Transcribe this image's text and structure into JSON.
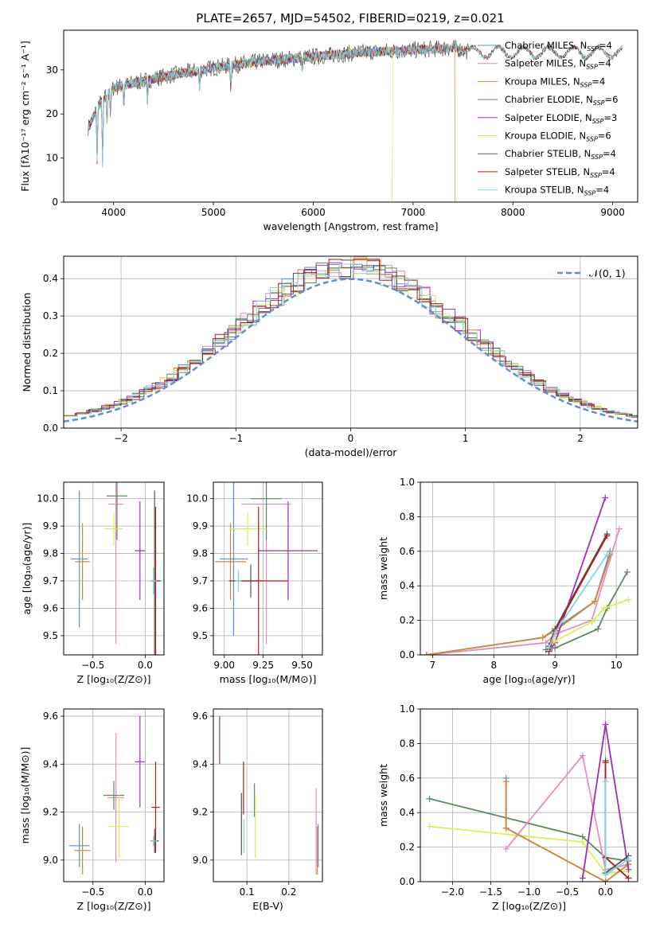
{
  "title": "PLATE=2657, MJD=54502, FIBERID=0219, z=0.021",
  "colors": {
    "Chabrier MILES": "#5b8fd6",
    "Salpeter MILES": "#e58ac2",
    "Kroupa MILES": "#d8862e",
    "Chabrier ELODIE": "#5b8a5e",
    "Salpeter ELODIE": "#9e2fb5",
    "Kroupa ELODIE": "#d8ef50",
    "Chabrier STELIB": "#555555",
    "Salpeter STELIB": "#b01b1b",
    "Kroupa STELIB": "#7ed6db"
  },
  "legend_spectrum": [
    {
      "label": "Chabrier MILES, N",
      "sub": "SSP",
      "tail": "=4",
      "key": "Chabrier MILES"
    },
    {
      "label": "Salpeter MILES, N",
      "sub": "SSP",
      "tail": "=4",
      "key": "Salpeter MILES"
    },
    {
      "label": "Kroupa MILES, N",
      "sub": "SSP",
      "tail": "=4",
      "key": "Kroupa MILES"
    },
    {
      "label": "Chabrier ELODIE, N",
      "sub": "SSP",
      "tail": "=6",
      "key": "Chabrier ELODIE"
    },
    {
      "label": "Salpeter ELODIE, N",
      "sub": "SSP",
      "tail": "=3",
      "key": "Salpeter ELODIE"
    },
    {
      "label": "Kroupa ELODIE, N",
      "sub": "SSP",
      "tail": "=6",
      "key": "Kroupa ELODIE"
    },
    {
      "label": "Chabrier STELIB, N",
      "sub": "SSP",
      "tail": "=4",
      "key": "Chabrier STELIB"
    },
    {
      "label": "Salpeter STELIB, N",
      "sub": "SSP",
      "tail": "=4",
      "key": "Salpeter STELIB"
    },
    {
      "label": "Kroupa STELIB, N",
      "sub": "SSP",
      "tail": "=4",
      "key": "Kroupa STELIB"
    }
  ],
  "chart_data": [
    {
      "type": "line",
      "name": "spectrum",
      "xlabel": "wavelength [Angstrom, rest frame]",
      "ylabel": "Flux [fλ10⁻¹⁷ erg cm⁻² s⁻¹ A⁻¹]",
      "xlim": [
        3500,
        9250
      ],
      "ylim": [
        0,
        39
      ],
      "xticks": [
        "4000",
        "5000",
        "6000",
        "7000",
        "8000",
        "9000"
      ],
      "yticks": [
        "0",
        "10",
        "20",
        "30"
      ],
      "continuum": {
        "x": [
          3750,
          3850,
          4000,
          4200,
          4500,
          5000,
          5500,
          6000,
          6500,
          7000,
          7400,
          7600,
          8000,
          8500,
          9100
        ],
        "y": [
          17,
          22,
          26,
          27,
          28.5,
          30.5,
          32,
          33,
          34,
          34.5,
          35,
          34,
          34,
          34,
          34
        ]
      }
    },
    {
      "type": "bar",
      "name": "residual histogram",
      "xlabel": "(data-model)/error",
      "ylabel": "Normed distribution",
      "xlim": [
        -2.5,
        2.5
      ],
      "ylim": [
        0,
        0.46
      ],
      "xticks": [
        "−2",
        "−1",
        "0",
        "1",
        "2"
      ],
      "yticks": [
        "0.0",
        "0.1",
        "0.2",
        "0.3",
        "0.4"
      ],
      "legend": "𝒩(0, 1)",
      "reference": "normal pdf, mean 0, sigma 1"
    },
    {
      "type": "scatter",
      "name": "age vs Z",
      "xlabel": "Z [log₁₀(Z/Z⊙)]",
      "ylabel": "age  [log₁₀(age/yr)]",
      "xlim": [
        -0.78,
        0.18
      ],
      "ylim": [
        9.43,
        10.06
      ],
      "xticks": [
        "−0.5",
        "0.0"
      ],
      "yticks": [
        "9.5",
        "9.6",
        "9.7",
        "9.8",
        "9.9",
        "10.0"
      ],
      "points": [
        {
          "series": "Chabrier MILES",
          "x": -0.63,
          "y": 9.78,
          "xerr": 0.08,
          "yerr": 0.25
        },
        {
          "series": "Kroupa MILES",
          "x": -0.6,
          "y": 9.77,
          "xerr": 0.07,
          "yerr": 0.14
        },
        {
          "series": "Salpeter MILES",
          "x": -0.28,
          "y": 9.98,
          "xerr": 0.07,
          "yerr": 0.51
        },
        {
          "series": "Chabrier ELODIE",
          "x": -0.27,
          "y": 10.01,
          "xerr": 0.1,
          "yerr": 0.16
        },
        {
          "series": "Kroupa ELODIE",
          "x": -0.3,
          "y": 9.89,
          "xerr": 0.09,
          "yerr": 0.06
        },
        {
          "series": "Salpeter ELODIE",
          "x": -0.05,
          "y": 9.81,
          "xerr": 0.05,
          "yerr": 0.18
        },
        {
          "series": "Chabrier STELIB",
          "x": 0.09,
          "y": 9.7,
          "xerr": 0.04,
          "yerr": 0.33
        },
        {
          "series": "Salpeter STELIB",
          "x": 0.1,
          "y": 9.7,
          "xerr": 0.05,
          "yerr": 0.27
        },
        {
          "series": "Kroupa STELIB",
          "x": 0.08,
          "y": 9.7,
          "xerr": 0.03,
          "yerr": 0.05
        }
      ]
    },
    {
      "type": "scatter",
      "name": "age vs mass",
      "xlabel": "mass [log₁₀(M/M⊙)]",
      "ylabel": "",
      "xlim": [
        8.93,
        9.63
      ],
      "ylim": [
        9.43,
        10.06
      ],
      "xticks": [
        "9.00",
        "9.25",
        "9.50"
      ],
      "yticks": [
        "9.5",
        "9.6",
        "9.7",
        "9.8",
        "9.9",
        "10.0"
      ],
      "points": [
        {
          "series": "Chabrier MILES",
          "x": 9.06,
          "y": 9.78,
          "xerr": 0.09,
          "yerr": 0.28
        },
        {
          "series": "Kroupa MILES",
          "x": 9.04,
          "y": 9.77,
          "xerr": 0.1,
          "yerr": 0.14
        },
        {
          "series": "Salpeter MILES",
          "x": 9.27,
          "y": 9.98,
          "xerr": 0.16,
          "yerr": 0.51
        },
        {
          "series": "Chabrier ELODIE",
          "x": 9.27,
          "y": 10.0,
          "xerr": 0.1,
          "yerr": 0.15
        },
        {
          "series": "Kroupa ELODIE",
          "x": 9.15,
          "y": 9.89,
          "xerr": 0.12,
          "yerr": 0.06
        },
        {
          "series": "Salpeter ELODIE",
          "x": 9.41,
          "y": 9.81,
          "xerr": 0.19,
          "yerr": 0.18
        },
        {
          "series": "Chabrier STELIB",
          "x": 9.17,
          "y": 9.7,
          "xerr": 0.08,
          "yerr": 0.06
        },
        {
          "series": "Salpeter STELIB",
          "x": 9.22,
          "y": 9.7,
          "xerr": 0.19,
          "yerr": 0.27
        },
        {
          "series": "Kroupa STELIB",
          "x": 9.09,
          "y": 9.7,
          "xerr": 0.02,
          "yerr": 0.04
        }
      ]
    },
    {
      "type": "line",
      "name": "mass weight vs age",
      "xlabel": "age  [log₁₀(age/yr)]",
      "ylabel": "mass weight",
      "xlim": [
        6.8,
        10.35
      ],
      "ylim": [
        0,
        1.0
      ],
      "xticks": [
        "7",
        "8",
        "9",
        "10"
      ],
      "yticks": [
        "0.0",
        "0.2",
        "0.4",
        "0.6",
        "0.8",
        "1.0"
      ],
      "series": [
        {
          "key": "Chabrier MILES",
          "x": [
            6.9,
            8.8,
            9.0,
            9.65,
            9.9
          ],
          "y": [
            0.0,
            0.1,
            0.15,
            0.31,
            0.6
          ]
        },
        {
          "key": "Salpeter MILES",
          "x": [
            6.9,
            8.85,
            9.0,
            9.6,
            10.05
          ],
          "y": [
            0.0,
            0.07,
            0.12,
            0.2,
            0.73
          ]
        },
        {
          "key": "Kroupa MILES",
          "x": [
            6.9,
            8.8,
            9.0,
            9.65,
            9.9
          ],
          "y": [
            0.0,
            0.1,
            0.14,
            0.31,
            0.58
          ]
        },
        {
          "key": "Chabrier ELODIE",
          "x": [
            8.85,
            8.95,
            9.0,
            9.7,
            9.85,
            10.18
          ],
          "y": [
            0.03,
            0.04,
            0.04,
            0.15,
            0.27,
            0.48
          ]
        },
        {
          "key": "Salpeter ELODIE",
          "x": [
            8.9,
            9.0,
            9.82
          ],
          "y": [
            0.02,
            0.07,
            0.91
          ]
        },
        {
          "key": "Kroupa ELODIE",
          "x": [
            8.9,
            9.0,
            9.6,
            9.8,
            10.2
          ],
          "y": [
            0.05,
            0.08,
            0.19,
            0.27,
            0.32
          ]
        },
        {
          "key": "Chabrier STELIB",
          "x": [
            8.9,
            9.0,
            9.85
          ],
          "y": [
            0.05,
            0.15,
            0.7
          ]
        },
        {
          "key": "Salpeter STELIB",
          "x": [
            8.9,
            9.0,
            9.85
          ],
          "y": [
            0.02,
            0.14,
            0.69
          ]
        },
        {
          "key": "Kroupa STELIB",
          "x": [
            8.9,
            9.0,
            9.85
          ],
          "y": [
            0.04,
            0.13,
            0.58
          ]
        }
      ]
    },
    {
      "type": "scatter",
      "name": "mass vs Z",
      "xlabel": "Z [log₁₀(Z/Z⊙)]",
      "ylabel": "mass [log₁₀(M/M⊙)]",
      "xlim": [
        -0.78,
        0.18
      ],
      "ylim": [
        8.91,
        9.63
      ],
      "xticks": [
        "−0.5",
        "0.0"
      ],
      "yticks": [
        "9.0",
        "9.2",
        "9.4",
        "9.6"
      ],
      "points": [
        {
          "series": "Chabrier MILES",
          "x": -0.63,
          "y": 9.06,
          "xerr": 0.1,
          "yerr": 0.09
        },
        {
          "series": "Kroupa MILES",
          "x": -0.6,
          "y": 9.04,
          "xerr": 0.08,
          "yerr": 0.1
        },
        {
          "series": "Salpeter MILES",
          "x": -0.28,
          "y": 9.26,
          "xerr": 0.08,
          "yerr": 0.27
        },
        {
          "series": "Chabrier ELODIE",
          "x": -0.3,
          "y": 9.27,
          "xerr": 0.1,
          "yerr": 0.06
        },
        {
          "series": "Kroupa ELODIE",
          "x": -0.25,
          "y": 9.14,
          "xerr": 0.1,
          "yerr": 0.13
        },
        {
          "series": "Salpeter ELODIE",
          "x": -0.05,
          "y": 9.41,
          "xerr": 0.05,
          "yerr": 0.19
        },
        {
          "series": "Chabrier STELIB",
          "x": 0.09,
          "y": 9.08,
          "xerr": 0.04,
          "yerr": 0.05
        },
        {
          "series": "Salpeter STELIB",
          "x": 0.1,
          "y": 9.22,
          "xerr": 0.04,
          "yerr": 0.19
        },
        {
          "series": "Kroupa STELIB",
          "x": 0.08,
          "y": 9.08,
          "xerr": 0.03,
          "yerr": 0.02
        }
      ]
    },
    {
      "type": "scatter",
      "name": "mass vs E(B-V)",
      "xlabel": "E(B-V)",
      "ylabel": "",
      "xlim": [
        0.02,
        0.28
      ],
      "ylim": [
        8.91,
        9.63
      ],
      "xticks": [
        "0.1",
        "0.2"
      ],
      "yticks": [
        "9.0",
        "9.2",
        "9.4",
        "9.6"
      ],
      "points": [
        {
          "series": "Salpeter ELODIE",
          "x": 0.035,
          "y": 9.5,
          "xerr": 0,
          "yerr": 0.1
        },
        {
          "series": "Chabrier STELIB",
          "x": 0.087,
          "y": 9.15,
          "xerr": 0,
          "yerr": 0.13
        },
        {
          "series": "Salpeter STELIB",
          "x": 0.092,
          "y": 9.3,
          "xerr": 0,
          "yerr": 0.11
        },
        {
          "series": "Chabrier ELODIE",
          "x": 0.118,
          "y": 9.25,
          "xerr": 0,
          "yerr": 0.07
        },
        {
          "series": "Kroupa ELODIE",
          "x": 0.12,
          "y": 9.14,
          "xerr": 0,
          "yerr": 0.13
        },
        {
          "series": "Kroupa STELIB",
          "x": 0.093,
          "y": 9.1,
          "xerr": 0,
          "yerr": 0.07
        },
        {
          "series": "Salpeter MILES",
          "x": 0.265,
          "y": 9.12,
          "xerr": 0,
          "yerr": 0.18
        },
        {
          "series": "Kroupa MILES",
          "x": 0.268,
          "y": 9.04,
          "xerr": 0,
          "yerr": 0.1
        },
        {
          "series": "Chabrier MILES",
          "x": 0.27,
          "y": 9.06,
          "xerr": 0,
          "yerr": 0.09
        }
      ]
    },
    {
      "type": "line",
      "name": "mass weight vs Z",
      "xlabel": "Z [log₁₀(Z/Z⊙)]",
      "ylabel": "mass weight",
      "xlim": [
        -2.42,
        0.42
      ],
      "ylim": [
        0,
        1.0
      ],
      "xticks": [
        "−2.0",
        "−1.5",
        "−1.0",
        "−0.5",
        "0.0"
      ],
      "yticks": [
        "0.0",
        "0.2",
        "0.4",
        "0.6",
        "0.8",
        "1.0"
      ],
      "series": [
        {
          "key": "Chabrier ELODIE",
          "x": [
            -2.3,
            -0.3,
            0.0,
            0.3
          ],
          "y": [
            0.48,
            0.26,
            0.14,
            0.12
          ]
        },
        {
          "key": "Kroupa ELODIE",
          "x": [
            -2.3,
            -0.3,
            0.0,
            0.3
          ],
          "y": [
            0.32,
            0.23,
            0.05,
            0.06
          ]
        },
        {
          "key": "Salpeter MILES",
          "x": [
            -1.3,
            -0.3,
            0.0,
            0.3
          ],
          "y": [
            0.19,
            0.73,
            0.07,
            0.1
          ]
        },
        {
          "key": "Chabrier MILES",
          "x": [
            -1.3,
            -1.3,
            0.0,
            0.3
          ],
          "y": [
            0.6,
            0.31,
            0.0,
            0.1
          ]
        },
        {
          "key": "Kroupa MILES",
          "x": [
            -1.3,
            -1.3,
            0.0,
            0.3
          ],
          "y": [
            0.58,
            0.31,
            0.0,
            0.1
          ]
        },
        {
          "key": "Salpeter ELODIE",
          "x": [
            -0.3,
            0.0,
            0.3
          ],
          "y": [
            0.02,
            0.91,
            0.07
          ]
        },
        {
          "key": "Chabrier STELIB",
          "x": [
            0.0,
            0.0,
            0.3
          ],
          "y": [
            0.7,
            0.05,
            0.15
          ]
        },
        {
          "key": "Salpeter STELIB",
          "x": [
            0.0,
            0.0,
            0.3
          ],
          "y": [
            0.69,
            0.14,
            0.02
          ]
        },
        {
          "key": "Kroupa STELIB",
          "x": [
            0.0,
            0.0,
            0.3
          ],
          "y": [
            0.58,
            0.04,
            0.13
          ]
        }
      ]
    }
  ]
}
